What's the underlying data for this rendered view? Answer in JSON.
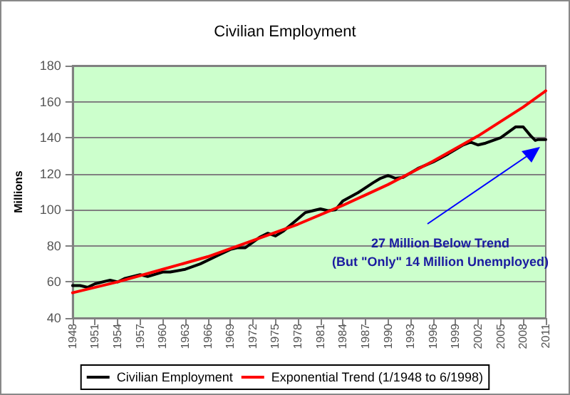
{
  "chart_data": {
    "type": "line",
    "title": "Civilian Employment",
    "ylabel": "Millions",
    "xlim": [
      1948,
      2011
    ],
    "xticks": [
      1948,
      1951,
      1954,
      1957,
      1960,
      1963,
      1966,
      1969,
      1972,
      1975,
      1978,
      1981,
      1984,
      1987,
      1990,
      1993,
      1996,
      1999,
      2002,
      2005,
      2008,
      2011
    ],
    "ylim": [
      40,
      180
    ],
    "yticks": [
      40,
      60,
      80,
      100,
      120,
      140,
      160,
      180
    ],
    "grid": "y",
    "legend": "bottom",
    "marker": "none",
    "line_style": "solid",
    "series": [
      {
        "name": "Civilian Employment",
        "color": "#000000",
        "x": [
          1948,
          1949,
          1950,
          1951,
          1953,
          1954,
          1955,
          1957,
          1958,
          1960,
          1961,
          1963,
          1965,
          1967,
          1969,
          1970,
          1971,
          1973,
          1974,
          1975,
          1976,
          1978,
          1979,
          1980,
          1981,
          1982,
          1983,
          1984,
          1986,
          1988,
          1989,
          1990,
          1991,
          1992,
          1994,
          1996,
          1998,
          2000,
          2001,
          2002,
          2003,
          2005,
          2007,
          2008,
          2009,
          2009.6,
          2010,
          2011
        ],
        "values": [
          58,
          58,
          57,
          59,
          61,
          60,
          62,
          64,
          63,
          65.5,
          65.5,
          67,
          70,
          74,
          78,
          79,
          79,
          85,
          87,
          85.5,
          88,
          95,
          98.5,
          99.5,
          100.5,
          99.5,
          100,
          105,
          109.5,
          115,
          117.5,
          119,
          117.5,
          118,
          123,
          126.5,
          131,
          136,
          137.5,
          136,
          137,
          140,
          146,
          146,
          141,
          138.5,
          139,
          139
        ]
      },
      {
        "name": "Exponential Trend (1/1948 to 6/1998)",
        "color": "#ff0000",
        "x": [
          1948,
          1954,
          1960,
          1966,
          1972,
          1978,
          1984,
          1990,
          1996,
          2002,
          2008,
          2011
        ],
        "values": [
          54,
          60,
          67,
          74,
          83,
          92,
          102.5,
          114,
          127,
          141,
          157,
          166
        ]
      }
    ],
    "annotations": [
      "27 Million Below Trend\n(But \"Only\" 14 Million Unemployed)"
    ]
  }
}
